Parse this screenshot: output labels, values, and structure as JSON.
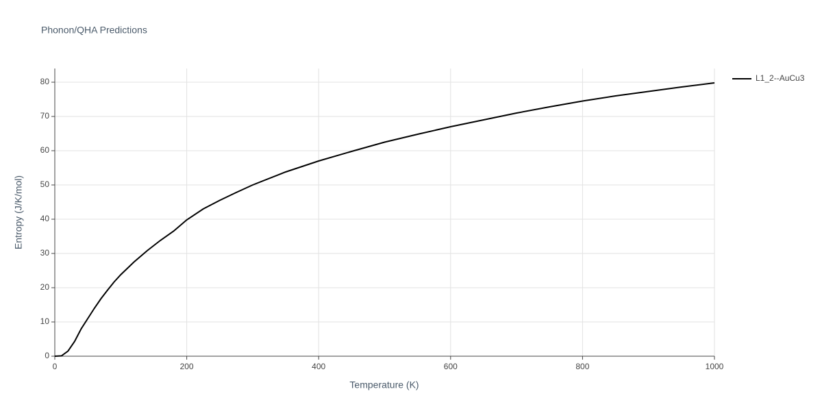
{
  "chart_data": {
    "type": "line",
    "title": "Phonon/QHA Predictions",
    "x_label": "Temperature (K)",
    "y_label": "Entropy (J/K/mol)",
    "x": [
      0,
      10,
      20,
      30,
      40,
      50,
      60,
      70,
      80,
      90,
      100,
      120,
      140,
      160,
      180,
      200,
      225,
      250,
      275,
      300,
      350,
      400,
      450,
      500,
      550,
      600,
      650,
      700,
      750,
      800,
      850,
      900,
      950,
      1000
    ],
    "series": [
      {
        "name": "L1_2--AuCu3",
        "color": "#000000",
        "values": [
          0,
          0.1,
          1.5,
          4.3,
          8,
          11,
          14,
          16.8,
          19.3,
          21.7,
          23.8,
          27.5,
          30.8,
          33.8,
          36.5,
          39.8,
          43,
          45.5,
          47.8,
          50,
          53.8,
          57,
          59.8,
          62.5,
          64.8,
          67,
          69,
          71,
          72.8,
          74.5,
          76,
          77.3,
          78.6,
          79.8
        ]
      }
    ],
    "xlim": [
      0,
      1000
    ],
    "xticks": [
      0,
      200,
      400,
      600,
      800,
      1000
    ],
    "ylim": [
      0,
      84
    ],
    "yticks": [
      0,
      10,
      20,
      30,
      40,
      50,
      60,
      70,
      80
    ],
    "grid": true,
    "legend": "right"
  }
}
